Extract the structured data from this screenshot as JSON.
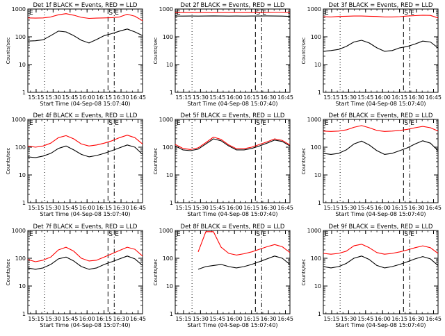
{
  "figure": {
    "xtick_labels": [
      "15:15",
      "15:30",
      "15:45",
      "16:00",
      "16:15",
      "16:30",
      "16:45"
    ],
    "ytick_labels": [
      "1",
      "10",
      "100",
      "1000"
    ],
    "ylabel": "Counts/sec",
    "xlabel": "Start Time (04-Sep-08 15:07:40)",
    "marker_labels": {
      "E": "E",
      "S": "S",
      "first": "E"
    },
    "colors": {
      "events": "#000000",
      "lld": "#ff0000"
    }
  },
  "chart_data": [
    {
      "type": "line",
      "title": "Det 1f BLACK = Events, RED = LLD",
      "xlim": [
        "15:07:40",
        "16:49:00"
      ],
      "ylim": [
        1,
        1000
      ],
      "yscale": "log",
      "grid": false,
      "markers": {
        "dotted": "15:22:30",
        "dashed": "16:18:30",
        "dashdot": "16:24:00"
      },
      "series": [
        {
          "color": "#000000",
          "values": [
            70,
            72,
            78,
            110,
            160,
            150,
            110,
            75,
            60,
            80,
            110,
            130,
            160,
            190,
            150,
            110
          ]
        },
        {
          "color": "#ff0000",
          "values": [
            480,
            470,
            480,
            520,
            620,
            680,
            600,
            500,
            460,
            470,
            480,
            490,
            520,
            650,
            550,
            380
          ]
        }
      ]
    },
    {
      "type": "line",
      "title": "Det 2f BLACK = Events, RED = LLD",
      "xlim": [
        "15:07:40",
        "16:49:00"
      ],
      "ylim": [
        1,
        1000
      ],
      "yscale": "log",
      "grid": false,
      "markers": {
        "dotted": "15:22:30",
        "dashed": "16:18:30",
        "dashdot": "16:24:00"
      },
      "series": [
        {
          "color": "#000000",
          "values": [
            560,
            555,
            560,
            555,
            560,
            565,
            560,
            555,
            560,
            555,
            560,
            560,
            565,
            560,
            555,
            540
          ]
        },
        {
          "color": "#ff0000",
          "values": [
            760,
            760,
            765,
            760,
            765,
            760,
            760,
            765,
            760,
            765,
            760,
            760,
            765,
            770,
            770,
            760
          ]
        }
      ]
    },
    {
      "type": "line",
      "title": "Det 3f BLACK = Events, RED = LLD",
      "xlim": [
        "15:07:40",
        "16:49:00"
      ],
      "ylim": [
        1,
        1000
      ],
      "yscale": "log",
      "grid": false,
      "markers": {
        "dotted": "15:22:30",
        "dashed": "16:18:30",
        "dashdot": "16:24:00"
      },
      "series": [
        {
          "color": "#000000",
          "values": [
            30,
            32,
            35,
            45,
            65,
            75,
            60,
            40,
            30,
            32,
            40,
            45,
            55,
            70,
            65,
            40
          ]
        },
        {
          "color": "#ff0000",
          "values": [
            530,
            520,
            540,
            550,
            560,
            560,
            550,
            540,
            520,
            520,
            530,
            560,
            580,
            600,
            590,
            480
          ]
        }
      ]
    },
    {
      "type": "line",
      "title": "Det 4f BLACK = Events, RED = LLD",
      "xlim": [
        "15:07:40",
        "16:49:00"
      ],
      "ylim": [
        1,
        1000
      ],
      "yscale": "log",
      "grid": false,
      "markers": {
        "dotted": "15:22:30",
        "dashed": "16:18:30",
        "dashdot": "16:24:00"
      },
      "series": [
        {
          "color": "#000000",
          "values": [
            45,
            42,
            48,
            60,
            90,
            110,
            80,
            55,
            45,
            50,
            60,
            75,
            95,
            120,
            100,
            55
          ]
        },
        {
          "color": "#ff0000",
          "values": [
            110,
            100,
            110,
            140,
            220,
            260,
            200,
            130,
            110,
            120,
            140,
            170,
            220,
            270,
            220,
            130
          ]
        }
      ]
    },
    {
      "type": "line",
      "title": "Det 5f BLACK = Events, RED = LLD",
      "xlim": [
        "15:07:40",
        "16:49:00"
      ],
      "ylim": [
        1,
        1000
      ],
      "yscale": "log",
      "grid": false,
      "markers": {
        "dotted": "15:22:30",
        "dashed": "16:18:30",
        "dashdot": "16:24:00"
      },
      "series": [
        {
          "color": "#000000",
          "values": [
            110,
            80,
            75,
            85,
            130,
            200,
            170,
            110,
            80,
            80,
            90,
            110,
            140,
            180,
            160,
            110
          ]
        },
        {
          "color": "#ff0000",
          "values": [
            125,
            90,
            82,
            95,
            145,
            230,
            190,
            120,
            88,
            88,
            100,
            125,
            155,
            200,
            175,
            120
          ]
        }
      ]
    },
    {
      "type": "line",
      "title": "Det 6f BLACK = Events, RED = LLD",
      "xlim": [
        "15:07:40",
        "16:49:00"
      ],
      "ylim": [
        1,
        1000
      ],
      "yscale": "log",
      "grid": false,
      "markers": {
        "dotted": "15:22:30",
        "dashed": "16:18:30",
        "dashdot": "16:24:00"
      },
      "series": [
        {
          "color": "#000000",
          "values": [
            60,
            55,
            60,
            80,
            130,
            165,
            120,
            75,
            55,
            60,
            75,
            95,
            130,
            170,
            140,
            75
          ]
        },
        {
          "color": "#ff0000",
          "values": [
            380,
            370,
            380,
            420,
            520,
            600,
            500,
            400,
            370,
            380,
            400,
            440,
            500,
            560,
            500,
            380
          ]
        }
      ]
    },
    {
      "type": "line",
      "title": "Det 7f BLACK = Events, RED = LLD",
      "xlim": [
        "15:07:40",
        "16:49:00"
      ],
      "ylim": [
        1,
        1000
      ],
      "yscale": "log",
      "grid": false,
      "markers": {
        "dotted": "15:22:30",
        "dashed": "16:18:30",
        "dashdot": "16:24:00"
      },
      "series": [
        {
          "color": "#000000",
          "values": [
            45,
            40,
            45,
            60,
            95,
            110,
            80,
            50,
            40,
            45,
            60,
            75,
            95,
            120,
            95,
            55
          ]
        },
        {
          "color": "#ff0000",
          "values": [
            90,
            75,
            85,
            110,
            200,
            250,
            180,
            100,
            80,
            85,
            110,
            145,
            190,
            250,
            210,
            120
          ]
        }
      ]
    },
    {
      "type": "line",
      "title": "Det 8f BLACK = Events, RED = LLD",
      "xlim": [
        "15:07:40",
        "16:49:00"
      ],
      "ylim": [
        1,
        1000
      ],
      "yscale": "log",
      "grid": false,
      "markers": {
        "dotted": "15:22:30",
        "dashed": "16:18:30",
        "dashdot": "16:24:00"
      },
      "series": [
        {
          "color": "#000000",
          "values": [
            null,
            null,
            null,
            40,
            50,
            55,
            60,
            50,
            45,
            50,
            60,
            75,
            95,
            120,
            100,
            60
          ]
        },
        {
          "color": "#ff0000",
          "values": [
            null,
            null,
            null,
            170,
            900,
            900,
            250,
            150,
            130,
            145,
            170,
            210,
            260,
            310,
            260,
            160
          ]
        }
      ]
    },
    {
      "type": "line",
      "title": "Det 9f BLACK = Events, RED = LLD",
      "xlim": [
        "15:07:40",
        "16:49:00"
      ],
      "ylim": [
        1,
        1000
      ],
      "yscale": "log",
      "grid": false,
      "markers": {
        "dotted": "15:22:30",
        "dashed": "16:18:30",
        "dashdot": "16:24:00"
      },
      "series": [
        {
          "color": "#000000",
          "values": [
            50,
            45,
            50,
            65,
            100,
            120,
            90,
            55,
            45,
            50,
            60,
            75,
            95,
            115,
            95,
            55
          ]
        },
        {
          "color": "#ff0000",
          "values": [
            150,
            140,
            150,
            180,
            280,
            320,
            240,
            160,
            140,
            150,
            170,
            200,
            240,
            280,
            240,
            150
          ]
        }
      ]
    }
  ]
}
